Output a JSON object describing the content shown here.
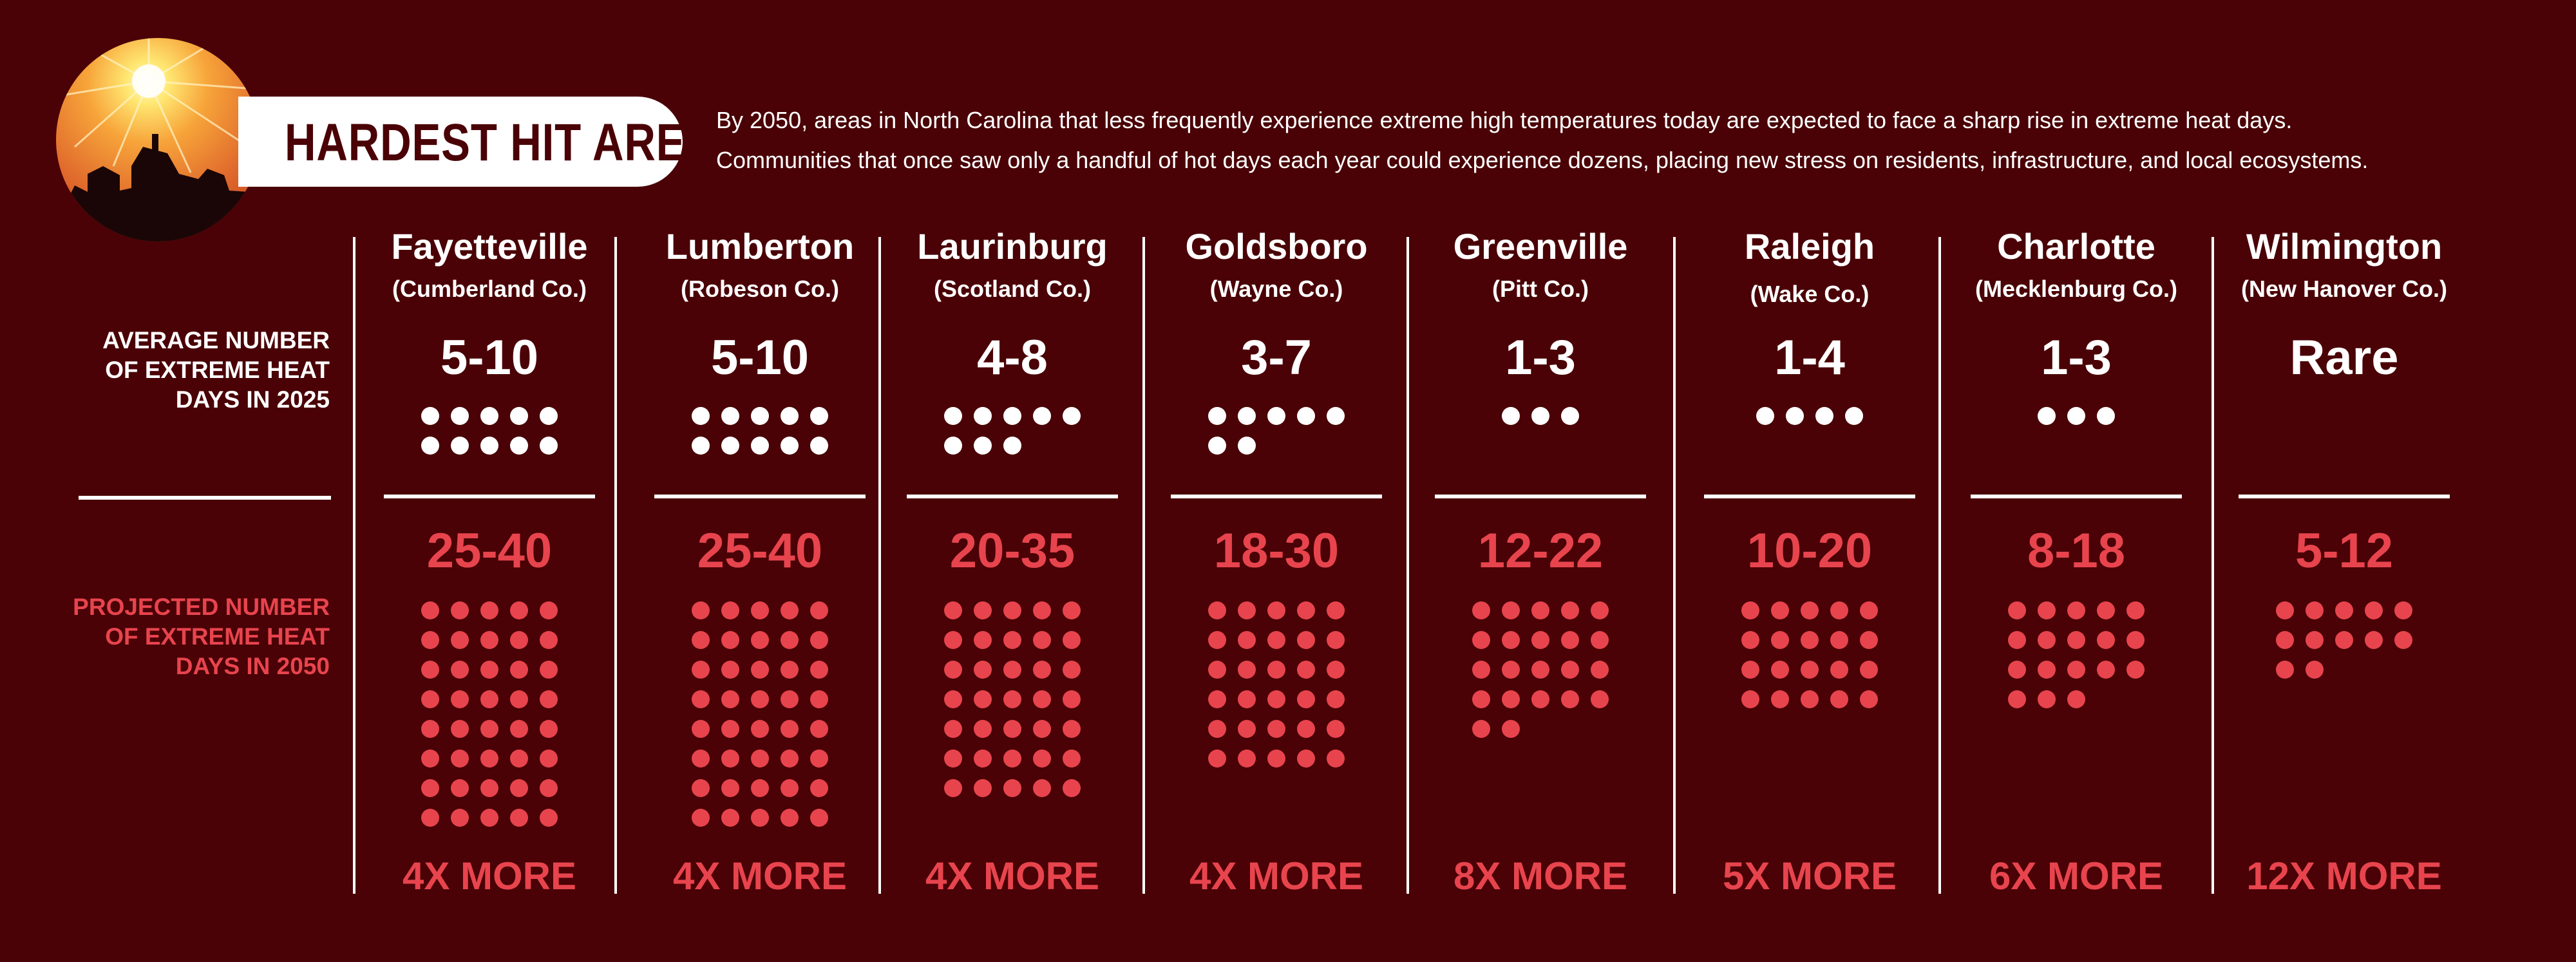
{
  "badge": {
    "title": "HARDEST HIT AREAS"
  },
  "intro": {
    "line1": "By 2050, areas in North Carolina that less frequently experience extreme high temperatures today are expected to face a sharp rise in extreme heat days.",
    "line2": "Communities that once saw only a handful of hot days each year could experience dozens, placing new stress on residents, infrastructure, and local ecosystems."
  },
  "row_labels": {
    "current": "AVERAGE NUMBER\nOF EXTREME HEAT\nDAYS IN 2025",
    "projected": "PROJECTED NUMBER\nOF EXTREME HEAT\nDAYS IN 2050"
  },
  "colors": {
    "background": "#4a0206",
    "accent": "#e8444e",
    "white": "#ffffff"
  },
  "icons": {
    "badge": "sun-over-houses-icon"
  },
  "chart_data": {
    "type": "table",
    "columns": [
      "city",
      "county",
      "current_days_2025",
      "projected_days_2050",
      "increase"
    ],
    "rows": [
      {
        "city": "Fayetteville",
        "county": "(Cumberland Co.)",
        "current": "5-10",
        "current_dots": 10,
        "projected": "25-40",
        "projected_dots": 40,
        "more": "4X MORE"
      },
      {
        "city": "Lumberton",
        "county": "(Robeson Co.)",
        "current": "5-10",
        "current_dots": 10,
        "projected": "25-40",
        "projected_dots": 40,
        "more": "4X MORE"
      },
      {
        "city": "Laurinburg",
        "county": "(Scotland Co.)",
        "current": "4-8",
        "current_dots": 8,
        "projected": "20-35",
        "projected_dots": 35,
        "more": "4X MORE"
      },
      {
        "city": "Goldsboro",
        "county": "(Wayne Co.)",
        "current": "3-7",
        "current_dots": 7,
        "projected": "18-30",
        "projected_dots": 30,
        "more": "4X MORE"
      },
      {
        "city": "Greenville",
        "county": "(Pitt Co.)",
        "current": "1-3",
        "current_dots": 3,
        "projected": "12-22",
        "projected_dots": 22,
        "more": "8X MORE"
      },
      {
        "city": "Raleigh",
        "county": "(Wake Co.)",
        "current": "1-4",
        "current_dots": 4,
        "projected": "10-20",
        "projected_dots": 20,
        "more": "5X MORE"
      },
      {
        "city": "Charlotte",
        "county": "(Mecklenburg Co.)",
        "current": "1-3",
        "current_dots": 3,
        "projected": "8-18",
        "projected_dots": 18,
        "more": "6X MORE"
      },
      {
        "city": "Wilmington",
        "county": "(New Hanover Co.)",
        "current": "Rare",
        "current_dots": 0,
        "projected": "5-12",
        "projected_dots": 12,
        "more": "12X MORE"
      }
    ]
  }
}
